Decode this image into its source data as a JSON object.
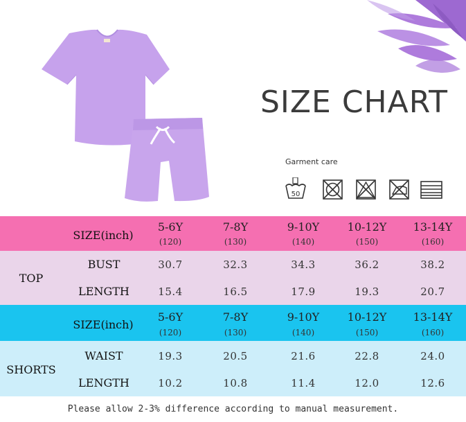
{
  "title": "SIZE CHART",
  "care_label": "Garment care",
  "care_icons": [
    "wash-50-icon",
    "no-tumble-dry-icon",
    "no-bleach-icon",
    "no-iron-icon",
    "line-dry-icon"
  ],
  "wash_temp": "50",
  "colors": {
    "pink_header": "#f56fb1",
    "lavender_rows": "#ead5ea",
    "cyan_header": "#1ac4ef",
    "light_blue_rows": "#cdeefa",
    "garment": "#c9a6ec"
  },
  "sizes": [
    {
      "label": "5-6Y",
      "sub": "(120)"
    },
    {
      "label": "7-8Y",
      "sub": "(130)"
    },
    {
      "label": "9-10Y",
      "sub": "(140)"
    },
    {
      "label": "10-12Y",
      "sub": "(150)"
    },
    {
      "label": "13-14Y",
      "sub": "(160)"
    }
  ],
  "header_label": "SIZE(inch)",
  "top": {
    "group": "TOP",
    "rows": [
      {
        "label": "BUST",
        "values": [
          "30.7",
          "32.3",
          "34.3",
          "36.2",
          "38.2"
        ]
      },
      {
        "label": "LENGTH",
        "values": [
          "15.4",
          "16.5",
          "17.9",
          "19.3",
          "20.7"
        ]
      }
    ]
  },
  "shorts": {
    "group": "SHORTS",
    "rows": [
      {
        "label": "WAIST",
        "values": [
          "19.3",
          "20.5",
          "21.6",
          "22.8",
          "24.0"
        ]
      },
      {
        "label": "LENGTH",
        "values": [
          "10.2",
          "10.8",
          "11.4",
          "12.0",
          "12.6"
        ]
      }
    ]
  },
  "note": "Please allow 2-3% difference according to manual measurement."
}
